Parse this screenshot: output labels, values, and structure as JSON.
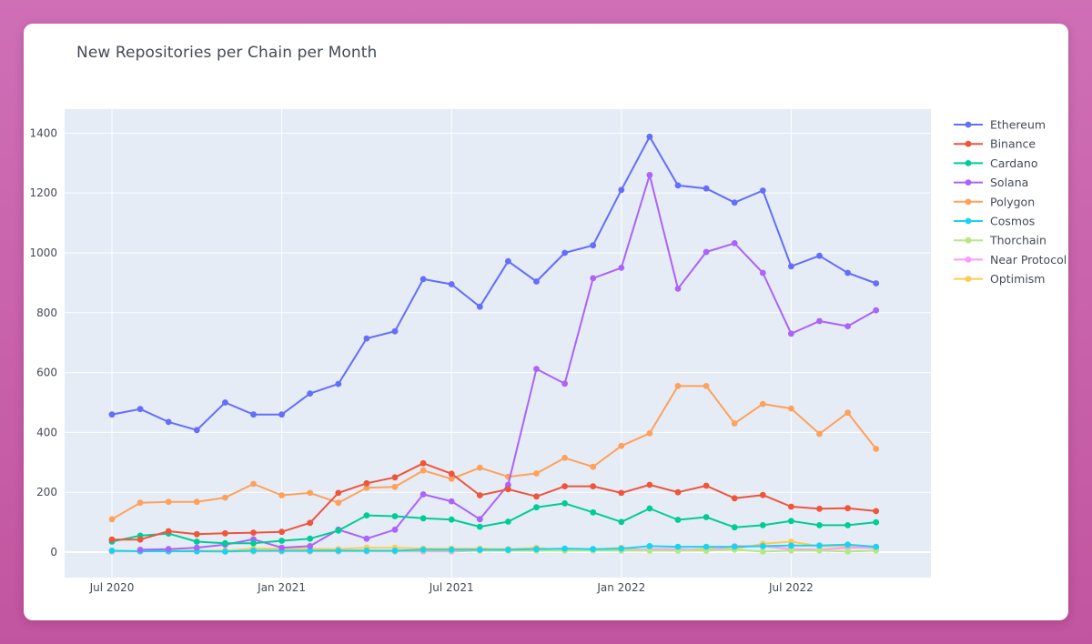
{
  "chart_data": {
    "type": "line",
    "title": "New Repositories per Chain per Month",
    "xlabel": "",
    "ylabel": "",
    "x": [
      "2020-07",
      "2020-08",
      "2020-09",
      "2020-10",
      "2020-11",
      "2020-12",
      "2021-01",
      "2021-02",
      "2021-03",
      "2021-04",
      "2021-05",
      "2021-06",
      "2021-07",
      "2021-08",
      "2021-09",
      "2021-10",
      "2021-11",
      "2021-12",
      "2022-01",
      "2022-02",
      "2022-03",
      "2022-04",
      "2022-05",
      "2022-06",
      "2022-07",
      "2022-08",
      "2022-09",
      "2022-10"
    ],
    "x_ticks": [
      {
        "x": "2020-07",
        "label": "Jul 2020"
      },
      {
        "x": "2021-01",
        "label": "Jan 2021"
      },
      {
        "x": "2021-07",
        "label": "Jul 2021"
      },
      {
        "x": "2022-01",
        "label": "Jan 2022"
      },
      {
        "x": "2022-07",
        "label": "Jul 2022"
      }
    ],
    "y_ticks": [
      0,
      200,
      400,
      600,
      800,
      1000,
      1200,
      1400
    ],
    "ylim": [
      -85,
      1480
    ],
    "grid": true,
    "legend_position": "right",
    "series": [
      {
        "name": "Ethereum",
        "color": "#636efa",
        "values": [
          460,
          478,
          435,
          408,
          500,
          460,
          460,
          530,
          562,
          714,
          738,
          912,
          895,
          820,
          972,
          904,
          1000,
          1025,
          1210,
          1388,
          1225,
          1215,
          1168,
          1208,
          955,
          990,
          933,
          898
        ]
      },
      {
        "name": "Binance",
        "color": "#ef553b",
        "values": [
          42,
          42,
          70,
          60,
          63,
          65,
          68,
          98,
          198,
          230,
          250,
          297,
          262,
          190,
          210,
          186,
          220,
          220,
          198,
          225,
          200,
          222,
          180,
          191,
          152,
          145,
          147,
          137
        ]
      },
      {
        "name": "Cardano",
        "color": "#00cc96",
        "values": [
          35,
          55,
          62,
          35,
          30,
          30,
          38,
          45,
          72,
          123,
          120,
          113,
          109,
          85,
          102,
          150,
          163,
          133,
          101,
          146,
          108,
          117,
          83,
          90,
          104,
          90,
          90,
          100
        ]
      },
      {
        "name": "Solana",
        "color": "#ab63fa",
        "values": [
          null,
          8,
          10,
          15,
          25,
          43,
          15,
          20,
          75,
          45,
          75,
          193,
          170,
          110,
          225,
          612,
          563,
          915,
          950,
          1260,
          880,
          1003,
          1032,
          933,
          730,
          772,
          755,
          808
        ]
      },
      {
        "name": "Polygon",
        "color": "#ffa15a",
        "values": [
          110,
          165,
          168,
          168,
          182,
          228,
          190,
          198,
          165,
          215,
          218,
          273,
          245,
          282,
          252,
          263,
          315,
          285,
          355,
          397,
          555,
          555,
          430,
          495,
          480,
          395,
          466,
          345
        ]
      },
      {
        "name": "Cosmos",
        "color": "#19d3f3",
        "values": [
          5,
          3,
          3,
          3,
          2,
          5,
          5,
          5,
          5,
          5,
          5,
          8,
          8,
          8,
          8,
          10,
          12,
          10,
          12,
          20,
          18,
          18,
          18,
          20,
          22,
          22,
          25,
          18
        ]
      },
      {
        "name": "Thorchain",
        "color": "#b6e880",
        "values": [
          3,
          2,
          2,
          2,
          2,
          3,
          3,
          3,
          3,
          3,
          3,
          5,
          5,
          5,
          5,
          5,
          5,
          5,
          5,
          5,
          5,
          5,
          8,
          2,
          5,
          5,
          2,
          5
        ]
      },
      {
        "name": "Near Protocol",
        "color": "#ff97ff",
        "values": [
          2,
          2,
          2,
          2,
          2,
          2,
          2,
          2,
          2,
          2,
          2,
          2,
          2,
          5,
          5,
          5,
          10,
          10,
          5,
          10,
          10,
          5,
          20,
          20,
          10,
          8,
          15,
          15
        ]
      },
      {
        "name": "Optimism",
        "color": "#fecb52",
        "values": [
          5,
          3,
          5,
          5,
          5,
          12,
          12,
          12,
          10,
          15,
          15,
          12,
          12,
          12,
          10,
          15,
          5,
          8,
          15,
          5,
          5,
          12,
          10,
          28,
          35,
          20,
          20,
          12
        ]
      }
    ]
  }
}
